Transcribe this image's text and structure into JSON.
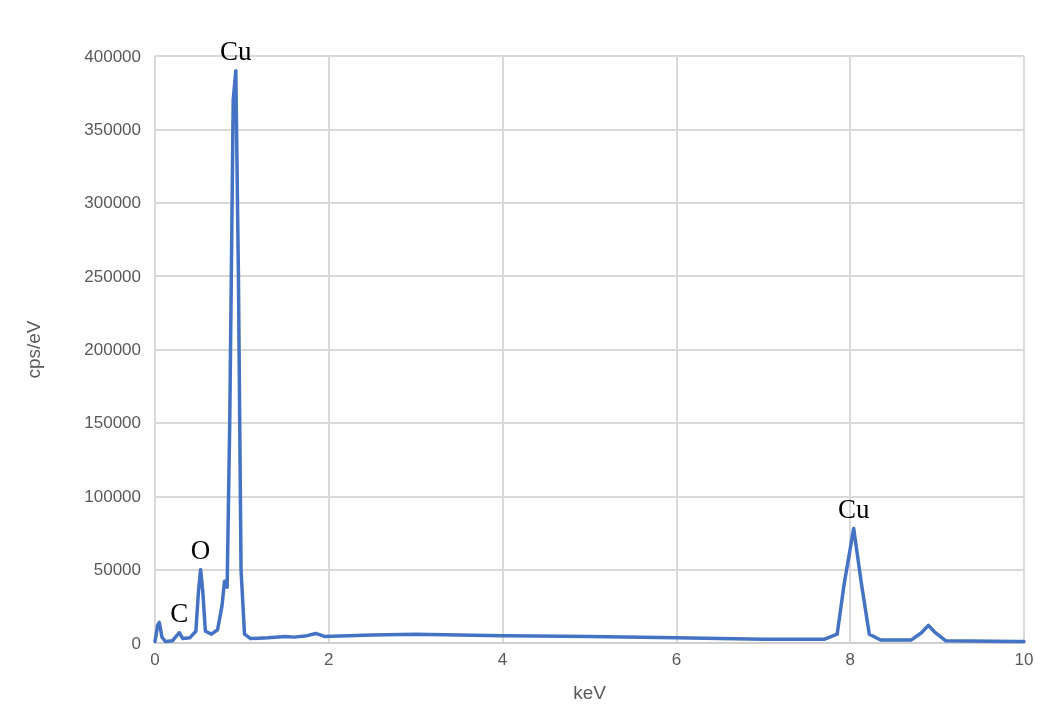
{
  "chart_data": {
    "type": "line",
    "xlabel": "keV",
    "ylabel": "cps/eV",
    "x": [
      0,
      0.03,
      0.05,
      0.08,
      0.12,
      0.2,
      0.25,
      0.28,
      0.32,
      0.4,
      0.47,
      0.5,
      0.525,
      0.55,
      0.58,
      0.65,
      0.72,
      0.77,
      0.8,
      0.83,
      0.86,
      0.9,
      0.93,
      0.96,
      0.99,
      1.03,
      1.1,
      1.3,
      1.5,
      1.6,
      1.75,
      1.85,
      1.95,
      2.5,
      3,
      4,
      5,
      6,
      7,
      7.7,
      7.85,
      7.93,
      8.04,
      8.13,
      8.22,
      8.35,
      8.7,
      8.82,
      8.9,
      8.98,
      9.1,
      10
    ],
    "series": [
      {
        "color": "#4472c4",
        "values": [
          1000,
          12000,
          14000,
          4000,
          1000,
          1500,
          5000,
          7000,
          3000,
          3500,
          8000,
          35000,
          50000,
          35000,
          8000,
          6000,
          9000,
          25000,
          42000,
          38000,
          150000,
          370000,
          390000,
          250000,
          50000,
          6000,
          3000,
          3500,
          4500,
          4000,
          5000,
          6500,
          4500,
          5500,
          6000,
          5000,
          4500,
          3500,
          2500,
          2500,
          6000,
          40000,
          78000,
          40000,
          6000,
          2000,
          2000,
          7000,
          12000,
          7000,
          1500,
          1000
        ]
      }
    ],
    "xlim": [
      0,
      10
    ],
    "xticks": [
      0,
      2,
      4,
      6,
      8,
      10
    ],
    "ylim": [
      0,
      400000
    ],
    "yticks": [
      0,
      50000,
      100000,
      150000,
      200000,
      250000,
      300000,
      350000,
      400000
    ],
    "grid": true,
    "marker": "none",
    "line_style": "solid",
    "annotations": [
      {
        "text": "C",
        "x": 0.28,
        "y": 7000
      },
      {
        "text": "O",
        "x": 0.525,
        "y": 50000
      },
      {
        "text": "Cu",
        "x": 0.93,
        "y": 390000
      },
      {
        "text": "Cu",
        "x": 8.04,
        "y": 78000
      }
    ]
  }
}
